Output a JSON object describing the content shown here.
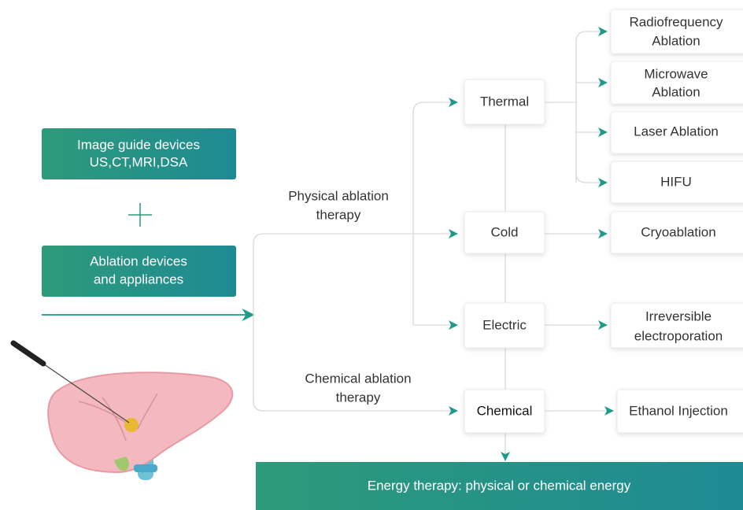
{
  "left": {
    "devices": [
      {
        "lines": [
          "Image guide devices",
          "US,CT,MRI,DSA"
        ]
      },
      {
        "lines": [
          "Ablation devices",
          "and appliances"
        ]
      }
    ]
  },
  "branches": {
    "physical": [
      "Physical ablation",
      "therapy"
    ],
    "chemical": [
      "Chemical ablation",
      "therapy"
    ]
  },
  "categories": [
    "Thermal",
    "Cold",
    "Electric",
    "Chemical"
  ],
  "methods": [
    [
      "Radiofrequency",
      "Ablation"
    ],
    [
      "Microwave",
      "Ablation"
    ],
    [
      "Laser Ablation"
    ],
    [
      "HIFU"
    ],
    [
      "Cryoablation"
    ],
    [
      "Irreversible",
      "electroporation"
    ],
    [
      "Ethanol Injection"
    ]
  ],
  "footer": "Energy therapy: physical or chemical energy"
}
